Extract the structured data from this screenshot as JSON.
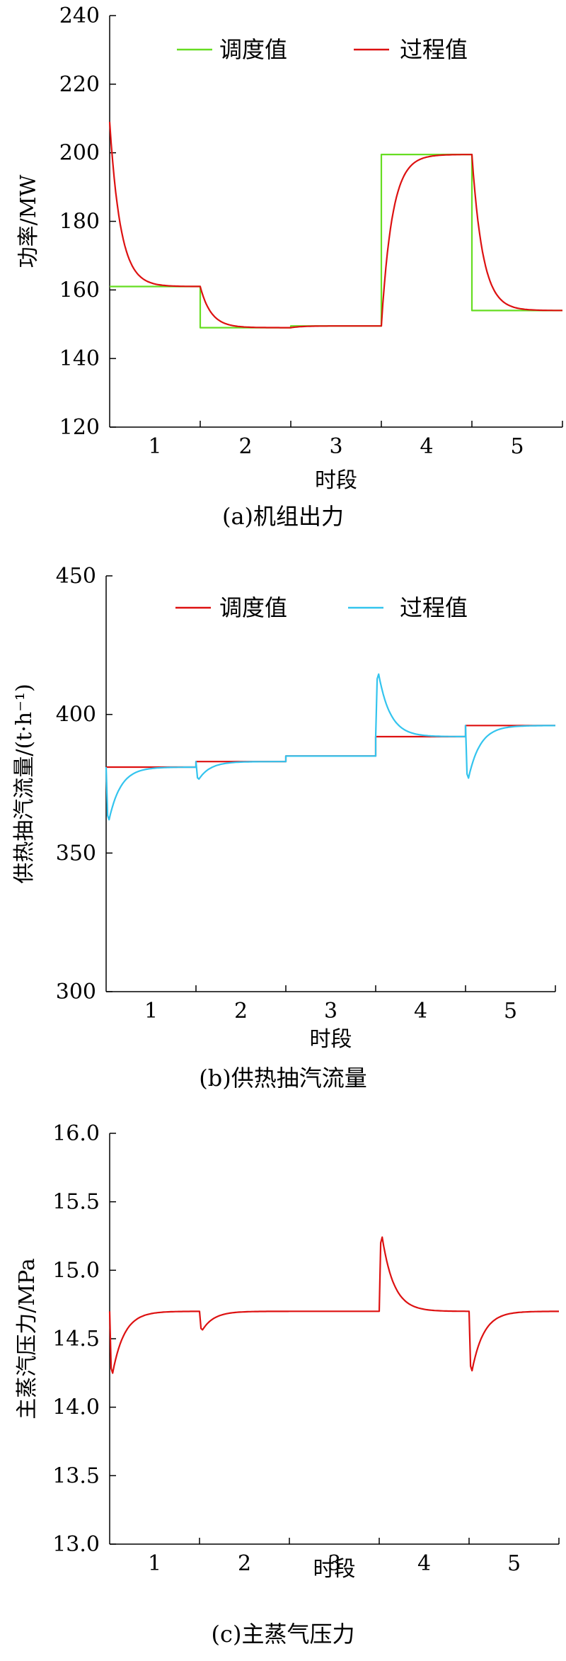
{
  "chart_data": [
    {
      "type": "line",
      "caption": "(a)机组出力",
      "xlabel": "时段",
      "ylabel": "功率/MW",
      "xlim": [
        0.5,
        5.5
      ],
      "ylim": [
        120,
        240
      ],
      "yticks": [
        "120",
        "140",
        "160",
        "180",
        "200",
        "220",
        "240"
      ],
      "xticks": [
        "1",
        "2",
        "3",
        "4",
        "5"
      ],
      "legend": {
        "placement": "top-center"
      },
      "series": [
        {
          "name": "调度值",
          "color": "#66dd22",
          "style": "step",
          "segments": [
            {
              "x0": 0.5,
              "x1": 1.5,
              "y": 161
            },
            {
              "x0": 1.5,
              "x1": 2.5,
              "y": 149
            },
            {
              "x0": 2.5,
              "x1": 3.5,
              "y": 149.5
            },
            {
              "x0": 3.5,
              "x1": 4.5,
              "y": 199.5
            },
            {
              "x0": 4.5,
              "x1": 5.5,
              "y": 154
            }
          ]
        },
        {
          "name": "过程值",
          "color": "#dd1111",
          "style": "process",
          "start": 209,
          "segments": [
            {
              "x0": 0.5,
              "x1": 1.5,
              "y": 161
            },
            {
              "x0": 1.5,
              "x1": 2.5,
              "y": 149
            },
            {
              "x0": 2.5,
              "x1": 3.5,
              "y": 149.5
            },
            {
              "x0": 3.5,
              "x1": 4.5,
              "y": 199.5
            },
            {
              "x0": 4.5,
              "x1": 5.5,
              "y": 154
            }
          ]
        }
      ]
    },
    {
      "type": "line",
      "caption": "(b)供热抽汽流量",
      "xlabel": "时段",
      "ylabel": "供热抽汽流量/(t·h⁻¹)",
      "xlim": [
        0.5,
        5.5
      ],
      "ylim": [
        300,
        450
      ],
      "yticks": [
        "300",
        "350",
        "400",
        "450"
      ],
      "xticks": [
        "1",
        "2",
        "3",
        "4",
        "5"
      ],
      "legend": {
        "placement": "top-center"
      },
      "series": [
        {
          "name": "调度值",
          "color": "#dd1111",
          "style": "step",
          "segments": [
            {
              "x0": 0.5,
              "x1": 1.5,
              "y": 381
            },
            {
              "x0": 1.5,
              "x1": 2.5,
              "y": 383
            },
            {
              "x0": 2.5,
              "x1": 3.5,
              "y": 385
            },
            {
              "x0": 3.5,
              "x1": 4.5,
              "y": 392
            },
            {
              "x0": 4.5,
              "x1": 5.5,
              "y": 396
            }
          ]
        },
        {
          "name": "过程值",
          "color": "#33c4ee",
          "style": "transient",
          "transients": [
            {
              "x0": 0.5,
              "x1": 1.5,
              "base": 381,
              "peak": 360
            },
            {
              "x0": 1.5,
              "x1": 2.5,
              "base": 383,
              "peak": 376
            },
            {
              "x0": 2.5,
              "x1": 3.5,
              "base": 385,
              "peak": 385
            },
            {
              "x0": 3.5,
              "x1": 4.5,
              "base": 392,
              "peak": 417
            },
            {
              "x0": 4.5,
              "x1": 5.5,
              "base": 396,
              "peak": 375
            }
          ]
        }
      ]
    },
    {
      "type": "line",
      "caption": "(c)主蒸气压力",
      "xlabel": "时段",
      "ylabel": "主蒸汽压力/MPa",
      "xlim": [
        0.5,
        5.5
      ],
      "ylim": [
        13.0,
        16.0
      ],
      "yticks": [
        "13.0",
        "13.5",
        "14.0",
        "14.5",
        "15.0",
        "15.5",
        "16.0"
      ],
      "xticks": [
        "1",
        "2",
        "3",
        "4",
        "5"
      ],
      "series": [
        {
          "color": "#dd1111",
          "style": "transient",
          "transients": [
            {
              "x0": 0.5,
              "x1": 1.5,
              "base": 14.7,
              "peak": 14.2,
              "pre": 14.7
            },
            {
              "x0": 1.5,
              "x1": 2.5,
              "base": 14.7,
              "peak": 14.55
            },
            {
              "x0": 2.5,
              "x1": 3.5,
              "base": 14.7,
              "peak": 14.7
            },
            {
              "x0": 3.5,
              "x1": 4.5,
              "base": 14.7,
              "peak": 15.3
            },
            {
              "x0": 4.5,
              "x1": 5.5,
              "base": 14.7,
              "peak": 14.22
            }
          ]
        }
      ]
    }
  ]
}
